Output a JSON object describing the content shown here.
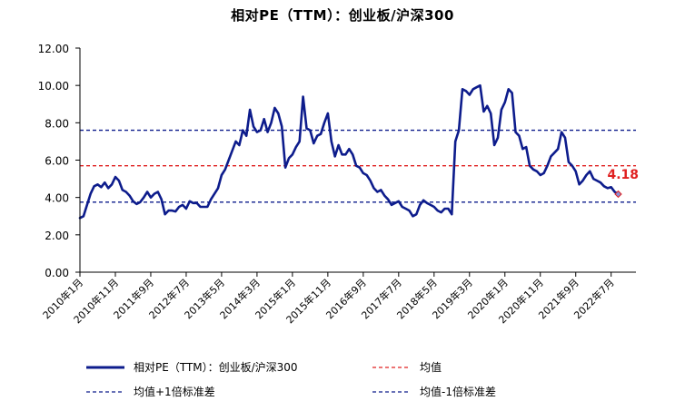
{
  "chart_data": {
    "type": "line",
    "title": "相对PE（TTM）：创业板/沪深300",
    "ylim": [
      0,
      12
    ],
    "yticks": [
      "0.00",
      "2.00",
      "4.00",
      "6.00",
      "8.00",
      "10.00",
      "12.00"
    ],
    "x_tick_labels": [
      "2010年1月",
      "2010年11月",
      "2011年9月",
      "2012年7月",
      "2013年5月",
      "2014年3月",
      "2015年1月",
      "2015年11月",
      "2016年9月",
      "2017年7月",
      "2018年5月",
      "2019年3月",
      "2020年1月",
      "2020年11月",
      "2021年9月",
      "2022年7月"
    ],
    "x_range": [
      0,
      157
    ],
    "series": [
      {
        "name": "相对PE（TTM）：创业板/沪深300",
        "color": "#0d1c8c",
        "points": [
          [
            0,
            2.9
          ],
          [
            1,
            3.0
          ],
          [
            2,
            3.6
          ],
          [
            3,
            4.2
          ],
          [
            4,
            4.6
          ],
          [
            5,
            4.7
          ],
          [
            6,
            4.55
          ],
          [
            7,
            4.8
          ],
          [
            8,
            4.5
          ],
          [
            9,
            4.7
          ],
          [
            10,
            5.1
          ],
          [
            11,
            4.9
          ],
          [
            12,
            4.4
          ],
          [
            13,
            4.3
          ],
          [
            14,
            4.1
          ],
          [
            15,
            3.8
          ],
          [
            16,
            3.65
          ],
          [
            17,
            3.75
          ],
          [
            18,
            4.0
          ],
          [
            19,
            4.3
          ],
          [
            20,
            4.0
          ],
          [
            21,
            4.2
          ],
          [
            22,
            4.3
          ],
          [
            23,
            3.9
          ],
          [
            24,
            3.1
          ],
          [
            25,
            3.3
          ],
          [
            26,
            3.3
          ],
          [
            27,
            3.25
          ],
          [
            28,
            3.5
          ],
          [
            29,
            3.6
          ],
          [
            30,
            3.4
          ],
          [
            31,
            3.8
          ],
          [
            32,
            3.7
          ],
          [
            33,
            3.7
          ],
          [
            34,
            3.5
          ],
          [
            35,
            3.5
          ],
          [
            36,
            3.5
          ],
          [
            37,
            3.9
          ],
          [
            38,
            4.2
          ],
          [
            39,
            4.5
          ],
          [
            40,
            5.2
          ],
          [
            41,
            5.5
          ],
          [
            42,
            6.0
          ],
          [
            43,
            6.5
          ],
          [
            44,
            7.0
          ],
          [
            45,
            6.8
          ],
          [
            46,
            7.6
          ],
          [
            47,
            7.3
          ],
          [
            48,
            8.7
          ],
          [
            49,
            7.8
          ],
          [
            50,
            7.5
          ],
          [
            51,
            7.6
          ],
          [
            52,
            8.2
          ],
          [
            53,
            7.5
          ],
          [
            54,
            8.0
          ],
          [
            55,
            8.8
          ],
          [
            56,
            8.5
          ],
          [
            57,
            7.8
          ],
          [
            58,
            5.6
          ],
          [
            59,
            6.1
          ],
          [
            60,
            6.3
          ],
          [
            61,
            6.7
          ],
          [
            62,
            7.0
          ],
          [
            63,
            9.4
          ],
          [
            64,
            7.7
          ],
          [
            65,
            7.6
          ],
          [
            66,
            6.9
          ],
          [
            67,
            7.3
          ],
          [
            68,
            7.4
          ],
          [
            69,
            8.0
          ],
          [
            70,
            8.5
          ],
          [
            71,
            7.0
          ],
          [
            72,
            6.2
          ],
          [
            73,
            6.8
          ],
          [
            74,
            6.3
          ],
          [
            75,
            6.3
          ],
          [
            76,
            6.6
          ],
          [
            77,
            6.3
          ],
          [
            78,
            5.7
          ],
          [
            79,
            5.6
          ],
          [
            80,
            5.3
          ],
          [
            81,
            5.2
          ],
          [
            82,
            4.9
          ],
          [
            83,
            4.5
          ],
          [
            84,
            4.3
          ],
          [
            85,
            4.4
          ],
          [
            86,
            4.1
          ],
          [
            87,
            3.9
          ],
          [
            88,
            3.6
          ],
          [
            89,
            3.7
          ],
          [
            90,
            3.8
          ],
          [
            91,
            3.5
          ],
          [
            92,
            3.4
          ],
          [
            93,
            3.3
          ],
          [
            94,
            3.0
          ],
          [
            95,
            3.1
          ],
          [
            96,
            3.6
          ],
          [
            97,
            3.85
          ],
          [
            98,
            3.7
          ],
          [
            99,
            3.6
          ],
          [
            100,
            3.5
          ],
          [
            101,
            3.3
          ],
          [
            102,
            3.2
          ],
          [
            103,
            3.4
          ],
          [
            104,
            3.4
          ],
          [
            105,
            3.1
          ],
          [
            106,
            7.0
          ],
          [
            107,
            7.6
          ],
          [
            108,
            9.8
          ],
          [
            109,
            9.7
          ],
          [
            110,
            9.5
          ],
          [
            111,
            9.8
          ],
          [
            112,
            9.9
          ],
          [
            113,
            10.0
          ],
          [
            114,
            8.6
          ],
          [
            115,
            8.9
          ],
          [
            116,
            8.5
          ],
          [
            117,
            6.8
          ],
          [
            118,
            7.2
          ],
          [
            119,
            8.7
          ],
          [
            120,
            9.1
          ],
          [
            121,
            9.8
          ],
          [
            122,
            9.6
          ],
          [
            123,
            7.5
          ],
          [
            124,
            7.3
          ],
          [
            125,
            6.6
          ],
          [
            126,
            6.7
          ],
          [
            127,
            5.7
          ],
          [
            128,
            5.5
          ],
          [
            129,
            5.4
          ],
          [
            130,
            5.2
          ],
          [
            131,
            5.3
          ],
          [
            132,
            5.7
          ],
          [
            133,
            6.2
          ],
          [
            134,
            6.4
          ],
          [
            135,
            6.6
          ],
          [
            136,
            7.5
          ],
          [
            137,
            7.2
          ],
          [
            138,
            5.9
          ],
          [
            139,
            5.7
          ],
          [
            140,
            5.4
          ],
          [
            141,
            4.7
          ],
          [
            142,
            4.9
          ],
          [
            143,
            5.2
          ],
          [
            144,
            5.4
          ],
          [
            145,
            5.0
          ],
          [
            146,
            4.9
          ],
          [
            147,
            4.8
          ],
          [
            148,
            4.6
          ],
          [
            149,
            4.5
          ],
          [
            150,
            4.55
          ],
          [
            151,
            4.3
          ],
          [
            152,
            4.18
          ]
        ]
      }
    ],
    "reference_lines": [
      {
        "name": "均值",
        "value": 5.7,
        "color": "#e02020"
      },
      {
        "name": "均值+1倍标准差",
        "value": 7.6,
        "color": "#0d1c8c"
      },
      {
        "name": "均值-1倍标准差",
        "value": 3.75,
        "color": "#0d1c8c"
      }
    ],
    "annotation": {
      "text": "4.18",
      "x": 152,
      "y": 4.18,
      "color": "#e02020"
    },
    "grid": false,
    "legend_position": "bottom"
  }
}
